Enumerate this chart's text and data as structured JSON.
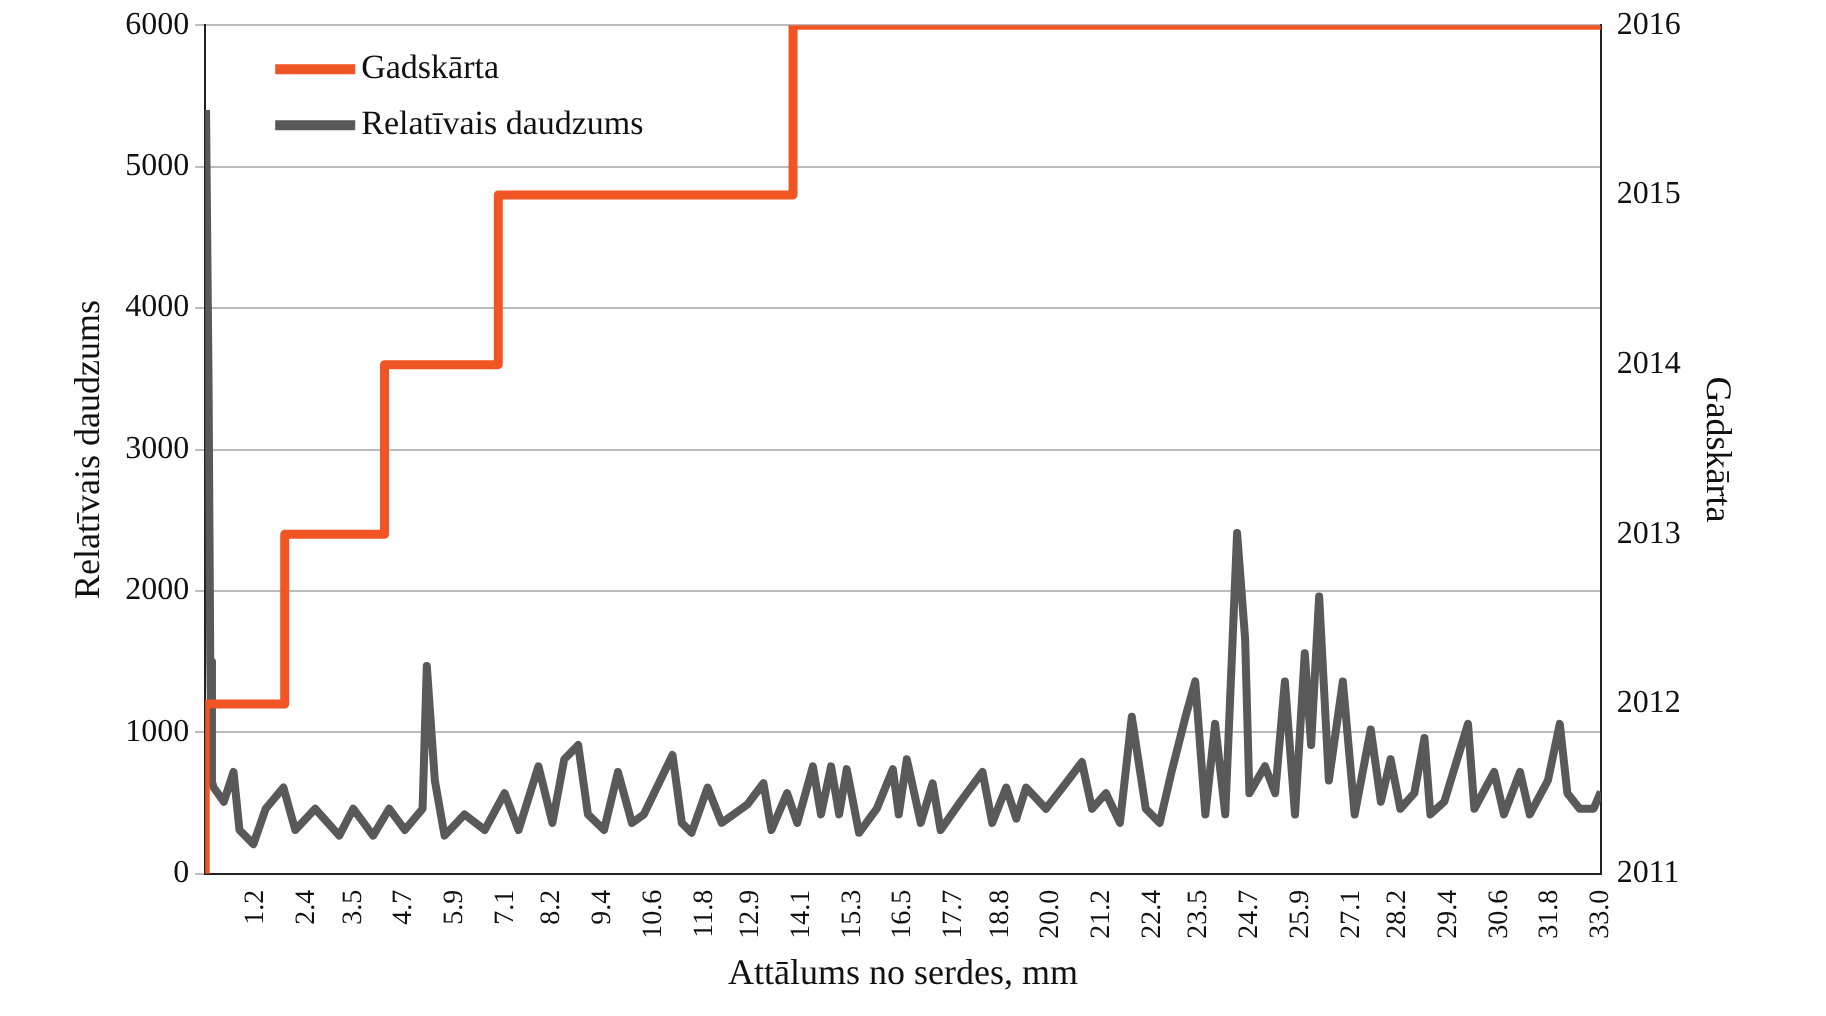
{
  "chart_data": {
    "type": "line",
    "xlabel": "Attālums no serdes, mm",
    "ylabel": "Relatīvais daudzums",
    "y2label": "Gadskārta",
    "xlim": [
      0,
      33
    ],
    "xticks": [
      1.2,
      2.4,
      3.5,
      4.7,
      5.9,
      7.1,
      8.2,
      9.4,
      10.6,
      11.8,
      12.9,
      14.1,
      15.3,
      16.5,
      17.7,
      18.8,
      {
        "value": 20,
        "label": "20.0"
      },
      21.2,
      22.4,
      23.5,
      24.7,
      25.9,
      27.1,
      28.2,
      29.4,
      30.6,
      31.8,
      {
        "value": 33,
        "label": "33.0"
      }
    ],
    "ylim": [
      0,
      6000
    ],
    "yticks": [
      0,
      1000,
      2000,
      3000,
      4000,
      5000,
      6000
    ],
    "y2lim": [
      2011,
      2016
    ],
    "y2ticks": [
      2011,
      2012,
      2013,
      2014,
      2015,
      2016
    ],
    "grid": "y",
    "legend": "top left",
    "series": [
      {
        "name": "Gadskārta",
        "type": "step",
        "axis": "y2",
        "color": "#f05523",
        "x": [
          0,
          1.88,
          4.24,
          6.93,
          13.9,
          21.8,
          33
        ],
        "values": [
          2011,
          2012,
          2013,
          2014,
          2015,
          2016,
          2016
        ]
      },
      {
        "name": "Relatīvais daudzums",
        "type": "line",
        "color": "#595959",
        "x": [
          0.02,
          0.08,
          0.12,
          0.16,
          0.2,
          0.44,
          0.67,
          0.81,
          1.14,
          1.43,
          1.85,
          2.13,
          2.6,
          3.17,
          3.5,
          3.97,
          4.35,
          4.72,
          5.14,
          5.24,
          5.43,
          5.66,
          6.13,
          6.61,
          7.08,
          7.41,
          7.88,
          8.21,
          8.49,
          8.82,
          9.05,
          9.43,
          9.76,
          10.09,
          10.37,
          11.05,
          11.27,
          11.5,
          11.88,
          12.21,
          12.82,
          13.2,
          13.39,
          13.76,
          14.0,
          14.37,
          14.56,
          14.8,
          14.99,
          15.17,
          15.46,
          15.88,
          16.26,
          16.4,
          16.59,
          16.92,
          17.2,
          17.39,
          17.86,
          18.38,
          18.61,
          18.94,
          19.18,
          19.41,
          19.88,
          20.35,
          20.73,
          20.97,
          21.3,
          21.63,
          21.91,
          22.24,
          22.57,
          22.85,
          23.18,
          23.41,
          23.65,
          23.88,
          24.12,
          24.4,
          24.59,
          24.69,
          25.06,
          25.3,
          25.53,
          25.77,
          26.0,
          26.15,
          26.34,
          26.57,
          26.9,
          27.18,
          27.56,
          27.8,
          28.03,
          28.26,
          28.59,
          28.83,
          28.97,
          29.3,
          29.86,
          30.01,
          30.48,
          30.71,
          31.09,
          31.32,
          31.75,
          32.03,
          32.21,
          32.5,
          32.83,
          33.0
        ],
        "values": [
          5400,
          3450,
          1500,
          650,
          610,
          510,
          720,
          310,
          210,
          460,
          610,
          310,
          460,
          270,
          460,
          270,
          460,
          310,
          460,
          1470,
          660,
          270,
          420,
          310,
          570,
          310,
          760,
          360,
          810,
          910,
          420,
          310,
          720,
          360,
          420,
          840,
          360,
          290,
          610,
          360,
          490,
          640,
          310,
          570,
          360,
          760,
          420,
          760,
          420,
          740,
          290,
          460,
          740,
          420,
          810,
          360,
          640,
          310,
          510,
          720,
          360,
          610,
          390,
          610,
          460,
          640,
          790,
          460,
          570,
          360,
          1110,
          460,
          360,
          720,
          1110,
          1360,
          420,
          1060,
          420,
          2410,
          1660,
          570,
          760,
          570,
          1360,
          420,
          1560,
          910,
          1960,
          660,
          1360,
          420,
          1020,
          510,
          810,
          460,
          570,
          960,
          420,
          510,
          1060,
          460,
          720,
          420,
          720,
          420,
          660,
          1060,
          570,
          460,
          460,
          580
        ]
      }
    ]
  }
}
